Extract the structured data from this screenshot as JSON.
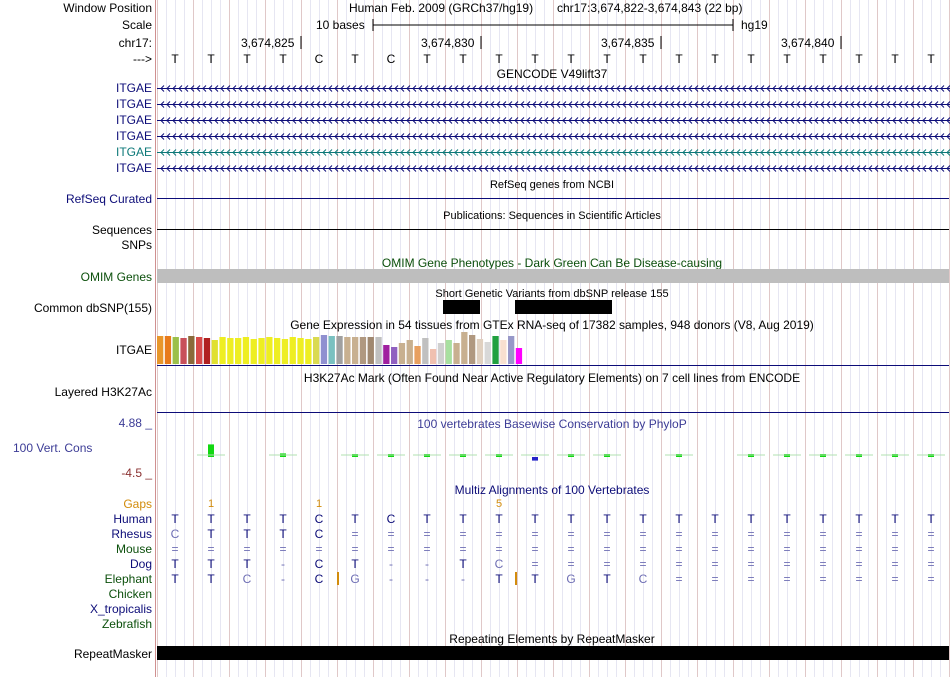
{
  "header": {
    "window_position_label": "Window Position",
    "scale_label": "Scale",
    "chrom_label": "chr17:",
    "arrow_label": "--->",
    "assembly": "Human Feb. 2009 (GRCh37/hg19)",
    "position": "chr17:3,674,822-3,674,843 (22 bp)",
    "scale_text": "10 bases",
    "db": "hg19",
    "ticks": [
      "3,674,825",
      "3,674,830",
      "3,674,835",
      "3,674,840"
    ]
  },
  "bases": [
    "T",
    "T",
    "T",
    "T",
    "C",
    "T",
    "C",
    "T",
    "T",
    "T",
    "T",
    "T",
    "T",
    "T",
    "T",
    "T",
    "T",
    "T",
    "T",
    "T",
    "T",
    "T"
  ],
  "gencode": {
    "title": "GENCODE V49lift37",
    "labels": [
      "ITGAE",
      "ITGAE",
      "ITGAE",
      "ITGAE",
      "ITGAE",
      "ITGAE"
    ],
    "colors": [
      "#0c0c78",
      "#0c0c78",
      "#0c0c78",
      "#0c0c78",
      "#0c7878",
      "#0c0c78"
    ]
  },
  "refseq": {
    "label": "RefSeq Curated",
    "title": "RefSeq genes from NCBI"
  },
  "publications": {
    "label": "Sequences",
    "title": "Publications: Sequences in Scientific Articles"
  },
  "snps_label": "SNPs",
  "omim": {
    "label": "OMIM Genes",
    "title": "OMIM Gene Phenotypes - Dark Green Can Be Disease-causing"
  },
  "dbsnp": {
    "label": "Common dbSNP(155)",
    "title": "Short Genetic Variants from dbSNP release 155"
  },
  "gtex": {
    "label": "ITGAE",
    "title": "Gene Expression in 54 tissues from GTEx RNA-seq of 17382 samples, 948 donors (V8, Aug 2019)",
    "bars": [
      {
        "c": "#e8962a",
        "h": 28
      },
      {
        "c": "#e87a1a",
        "h": 28
      },
      {
        "c": "#9bc04a",
        "h": 27
      },
      {
        "c": "#c8505a",
        "h": 26
      },
      {
        "c": "#8a6a3a",
        "h": 28
      },
      {
        "c": "#d84a4a",
        "h": 27
      },
      {
        "c": "#b02020",
        "h": 26
      },
      {
        "c": "#e0e030",
        "h": 24
      },
      {
        "c": "#eeee22",
        "h": 27
      },
      {
        "c": "#eeee22",
        "h": 26
      },
      {
        "c": "#eeee22",
        "h": 26
      },
      {
        "c": "#eeee22",
        "h": 27
      },
      {
        "c": "#eeee22",
        "h": 25
      },
      {
        "c": "#eeee22",
        "h": 26
      },
      {
        "c": "#eeee22",
        "h": 27
      },
      {
        "c": "#eeee22",
        "h": 26
      },
      {
        "c": "#eeee22",
        "h": 25
      },
      {
        "c": "#eeee22",
        "h": 27
      },
      {
        "c": "#eeee22",
        "h": 26
      },
      {
        "c": "#eeee22",
        "h": 25
      },
      {
        "c": "#dada50",
        "h": 27
      },
      {
        "c": "#9090d0",
        "h": 29
      },
      {
        "c": "#7ac0c0",
        "h": 28
      },
      {
        "c": "#a0a0a0",
        "h": 28
      },
      {
        "c": "#c8b090",
        "h": 27
      },
      {
        "c": "#c8b090",
        "h": 27
      },
      {
        "c": "#b09880",
        "h": 27
      },
      {
        "c": "#a08870",
        "h": 27
      },
      {
        "c": "#c0c0c0",
        "h": 27
      },
      {
        "c": "#a020a0",
        "h": 19
      },
      {
        "c": "#9060c0",
        "h": 17
      },
      {
        "c": "#c8b090",
        "h": 21
      },
      {
        "c": "#c8b090",
        "h": 24
      },
      {
        "c": "#e8a060",
        "h": 18
      },
      {
        "c": "#c0c0c0",
        "h": 26
      },
      {
        "c": "#f0c0b0",
        "h": 15
      },
      {
        "c": "#d0d0d0",
        "h": 21
      },
      {
        "c": "#a8e0a0",
        "h": 24
      },
      {
        "c": "#c8b090",
        "h": 21
      },
      {
        "c": "#c8b090",
        "h": 32
      },
      {
        "c": "#b09880",
        "h": 29
      },
      {
        "c": "#e0d0c0",
        "h": 25
      },
      {
        "c": "#d8d8d8",
        "h": 22
      },
      {
        "c": "#20a040",
        "h": 28
      },
      {
        "c": "#f8e0d0",
        "h": 24
      },
      {
        "c": "#9898c8",
        "h": 28
      },
      {
        "c": "#ff00ff",
        "h": 16
      }
    ]
  },
  "h3k27ac": {
    "label": "Layered H3K27Ac",
    "title": "H3K27Ac Mark (Often Found Near Active Regulatory Elements) on 7 cell lines from ENCODE"
  },
  "cons": {
    "label": "100 Vert. Cons",
    "title": "100 vertebrates Basewise Conservation by PhyloP",
    "max_label": "4.88 _",
    "min_label": "-4.5 _",
    "scores": [
      0,
      1.4,
      0,
      0.4,
      0,
      0.2,
      0.3,
      0.3,
      0.2,
      0.3,
      -0.4,
      0.3,
      0.3,
      0,
      0.3,
      0,
      0.2,
      0.3,
      0.3,
      0.3,
      0.3,
      0.2
    ]
  },
  "multiz": {
    "title": "Multiz Alignments of 100 Vertebrates",
    "gaps_label": "Gaps",
    "gap_marks": [
      {
        "pos": 1.5,
        "text": "1"
      },
      {
        "pos": 4.5,
        "text": "1"
      },
      {
        "pos": 9.5,
        "text": "5"
      }
    ],
    "species": [
      {
        "name": "Human",
        "color": "#0c0c78",
        "row": [
          "T",
          "T",
          "T",
          "T",
          "C",
          "T",
          "C",
          "T",
          "T",
          "T",
          "T",
          "T",
          "T",
          "T",
          "T",
          "T",
          "T",
          "T",
          "T",
          "T",
          "T",
          "T"
        ]
      },
      {
        "name": "Rhesus",
        "color": "#0c0c78",
        "row": [
          "C",
          "T",
          "T",
          "T",
          "C",
          "=",
          "=",
          "=",
          "=",
          "=",
          "=",
          "=",
          "=",
          "=",
          "=",
          "=",
          "=",
          "=",
          "=",
          "=",
          "=",
          "="
        ]
      },
      {
        "name": "Mouse",
        "color": "#0c500c",
        "row": [
          "=",
          "=",
          "=",
          "=",
          "=",
          "=",
          "=",
          "=",
          "=",
          "=",
          "=",
          "=",
          "=",
          "=",
          "=",
          "=",
          "=",
          "=",
          "=",
          "=",
          "=",
          "="
        ]
      },
      {
        "name": "Dog",
        "color": "#0c0c78",
        "row": [
          "T",
          "T",
          "T",
          "-",
          "C",
          "T",
          "-",
          "-",
          "T",
          "C",
          "=",
          "=",
          "=",
          "=",
          "=",
          "=",
          "=",
          "=",
          "=",
          "=",
          "=",
          "="
        ]
      },
      {
        "name": "Elephant",
        "color": "#0c500c",
        "row": [
          "T",
          "T",
          "C",
          "-",
          "C",
          "G",
          "-",
          "-",
          "-",
          "T",
          "T",
          "G",
          "T",
          "C",
          "=",
          "=",
          "=",
          "=",
          "=",
          "=",
          "=",
          "="
        ]
      },
      {
        "name": "Chicken",
        "color": "#0c500c",
        "row": []
      },
      {
        "name": "X_tropicalis",
        "color": "#0c0c78",
        "row": []
      },
      {
        "name": "Zebrafish",
        "color": "#0c500c",
        "row": []
      }
    ]
  },
  "repeatmasker": {
    "label": "RepeatMasker",
    "title": "Repeating Elements by RepeatMasker"
  }
}
